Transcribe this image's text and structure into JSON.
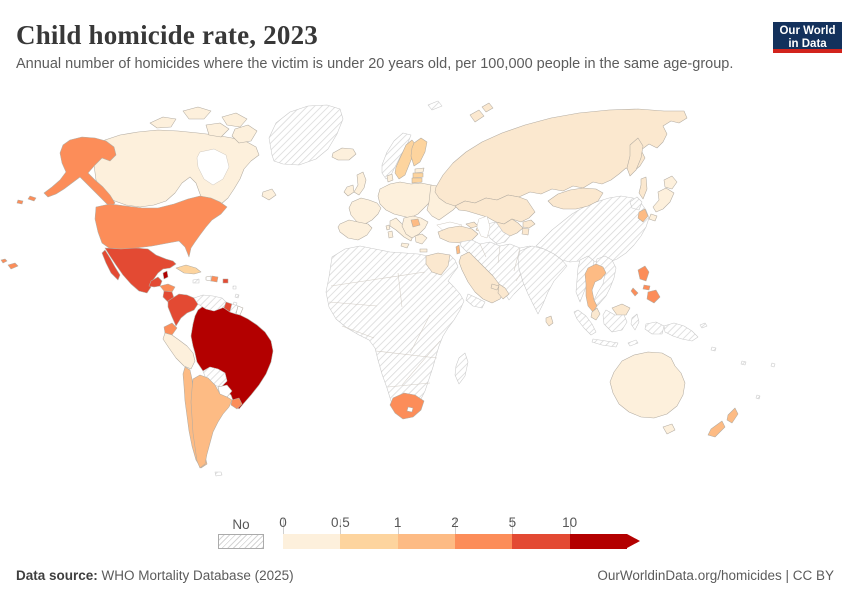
{
  "header": {
    "title": "Child homicide rate, 2023",
    "subtitle": "Annual number of homicides where the victim is under 20 years old, per 100,000 people in the same age-group.",
    "logo_line1": "Our World",
    "logo_line2": "in Data"
  },
  "legend": {
    "no_data_label": "No data",
    "ticks": [
      "0",
      "0.5",
      "1",
      "2",
      "5",
      "10"
    ],
    "bin_colors": [
      "#fdf0dc",
      "#fdd49e",
      "#fdbb84",
      "#fc8d59",
      "#e34a33",
      "#b30000"
    ]
  },
  "footer": {
    "source_label": "Data source:",
    "source_text": " WHO Mortality Database (2025)",
    "link_text": "OurWorldinData.org/homicides | CC BY"
  },
  "chart_data": {
    "type": "choropleth_map",
    "title": "Child homicide rate, 2023",
    "unit": "annual homicides per 100,000 people under 20 years old",
    "legend_bins": [
      {
        "range": "0-0.5",
        "color": "#fdf0dc"
      },
      {
        "range": "0.5-1",
        "color": "#fdd49e"
      },
      {
        "range": "1-2",
        "color": "#fdbb84"
      },
      {
        "range": "2-5",
        "color": "#fc8d59"
      },
      {
        "range": "5-10",
        "color": "#e34a33"
      },
      {
        "range": "10+",
        "color": "#b30000"
      }
    ],
    "countries": {
      "Canada": "0-0.5",
      "United States": "2-5",
      "Mexico": "5-10",
      "Guatemala": "5-10",
      "Belize": "10+",
      "Honduras": "2-5",
      "Nicaragua": "5-10",
      "Costa Rica": "2-5",
      "Panama": "5-10",
      "Cuba": "0.5-1",
      "Dominican Republic": "2-5",
      "Puerto Rico": "5-10",
      "Colombia": "5-10",
      "Guyana": "5-10",
      "Ecuador": "2-5",
      "Peru": "0-0.5",
      "Brazil": "10+",
      "Chile": "1-2",
      "Argentina": "1-2",
      "Uruguay": "2-5",
      "United Kingdom": "0-0.5",
      "Ireland": "0-0.5",
      "Iceland": "0-0.5",
      "Sweden": "0.5-1",
      "Finland": "0.5-1",
      "Estonia": "0-0.5",
      "Latvia": "0.5-1",
      "Lithuania": "0.5-1",
      "France": "0-0.5",
      "Spain": "0-0.5",
      "Portugal": "0-0.5",
      "Germany": "0-0.5",
      "Italy": "0-0.5",
      "Poland": "0-0.5",
      "Ukraine": "0-0.5",
      "Serbia": "1-2",
      "Greece": "0-0.5",
      "Turkey": "0.5-1",
      "Russia": "0.5-1",
      "Kazakhstan": "0.5-1",
      "Uzbekistan": "0.5-1",
      "Kyrgyzstan": "0.5-1",
      "Tajikistan": "0.5-1",
      "Mongolia": "0.5-1",
      "Georgia": "0.5-1",
      "Azerbaijan": "0.5-1",
      "Israel": "1-2",
      "Saudi Arabia": "0.5-1",
      "Oman": "0.5-1",
      "United Arab Emirates": "0.5-1",
      "Egypt": "0.5-1",
      "South Africa": "2-5",
      "Sri Lanka": "0.5-1",
      "Thailand": "1-2",
      "Malaysia": "0.5-1",
      "Philippines": "2-5",
      "South Korea": "1-2",
      "Japan": "0-0.5",
      "Australia": "0-0.5",
      "New Zealand": "1-2"
    },
    "no_data": [
      "Greenland",
      "Norway",
      "Venezuela",
      "Bolivia",
      "Suriname",
      "Haiti",
      "Jamaica",
      "most of Africa",
      "Madagascar",
      "Syria",
      "Iraq",
      "Iran",
      "Afghanistan",
      "Pakistan",
      "Turkmenistan",
      "India",
      "China",
      "North Korea",
      "Myanmar",
      "Vietnam",
      "Laos",
      "Cambodia",
      "Indonesia",
      "Papua New Guinea"
    ]
  },
  "map": {
    "region_fills": {
      "greenland": "hatch",
      "canada": "#fdf0dc",
      "alaska": "#fc8d59",
      "usa": "#fc8d59",
      "hawaii": "#fc8d59",
      "aleutians": "#fc8d59",
      "hudson_bay": "#ffffff",
      "newfoundland": "#fdf0dc",
      "mexico": "#e34a33",
      "belize": "#b30000",
      "guatemala": "#e34a33",
      "honduras": "#fc8d59",
      "nicaragua": "#e34a33",
      "costa_rica": "#fc8d59",
      "panama": "#e34a33",
      "cuba": "#fdd49e",
      "jamaica": "hatch",
      "haiti": "#ffffff",
      "dominican_republic": "#fc8d59",
      "puerto_rico": "#e34a33",
      "antilles": "hatch",
      "colombia": "#e34a33",
      "venezuela": "hatch",
      "guyana": "#e34a33",
      "suriname": "hatch",
      "guyane": "#ffffff",
      "ecuador": "#fc8d59",
      "peru": "#fdf0dc",
      "brazil": "#b30000",
      "bolivia": "hatch",
      "paraguay": "#ffffff",
      "chile": "#fdbb84",
      "argentina": "#fdbb84",
      "uruguay": "#fc8d59",
      "falkland": "hatch",
      "iceland": "#fdf0dc",
      "uk": "#fdf0dc",
      "ireland": "#fdf0dc",
      "norway": "hatch",
      "sweden": "#fdd49e",
      "finland": "#fdd49e",
      "estonia": "#fdf0dc",
      "latvia": "#fdd49e",
      "lithuania": "#fdd49e",
      "denmark": "#fdf0dc",
      "central_europe": "#fdf0dc",
      "france": "#fdf0dc",
      "iberia": "#fdf0dc",
      "italy": "#fdf0dc",
      "balkans": "#fdf0dc",
      "serbia": "#fdbb84",
      "greece": "#fdf0dc",
      "east_europe": "#fdf0dc",
      "black_sea": "#ffffff",
      "caspian": "#ffffff",
      "russia": "#fbe8cf",
      "svalbard": "hatch",
      "kazakhstan": "#fbe8cf",
      "uzbekistan": "#fbe8cf",
      "turkmenistan": "hatch",
      "kyrgyzstan": "#fbe8cf",
      "tajikistan": "#fbe8cf",
      "caucasus": "#fbe8cf",
      "turkey": "#fbe8cf",
      "israel": "#fdbb84",
      "middle_east": "hatch",
      "saudi": "#fbe8cf",
      "yemen": "hatch",
      "oman": "#fbe8cf",
      "uae": "#fbe8cf",
      "egypt": "#fbe8cf",
      "africa": "hatch",
      "south_africa": "#fc8d59",
      "lesotho": "#ffffff",
      "madagascar": "hatch",
      "india": "hatch",
      "sri_lanka": "#fbe8cf",
      "china": "hatch",
      "mongolia": "#fbe8cf",
      "north_korea": "hatch",
      "south_korea": "#fdbb84",
      "japan": "#fdf0dc",
      "myanmar": "hatch",
      "thailand": "#fdbb84",
      "indochina": "hatch",
      "malaysia": "#fbe8cf",
      "indonesia": "hatch",
      "png": "hatch",
      "philippines": "#fc8d59",
      "australia": "#fdf0dc",
      "tasmania": "#fdf0dc",
      "new_zealand": "#fdbb84",
      "pacific": "hatch"
    }
  }
}
